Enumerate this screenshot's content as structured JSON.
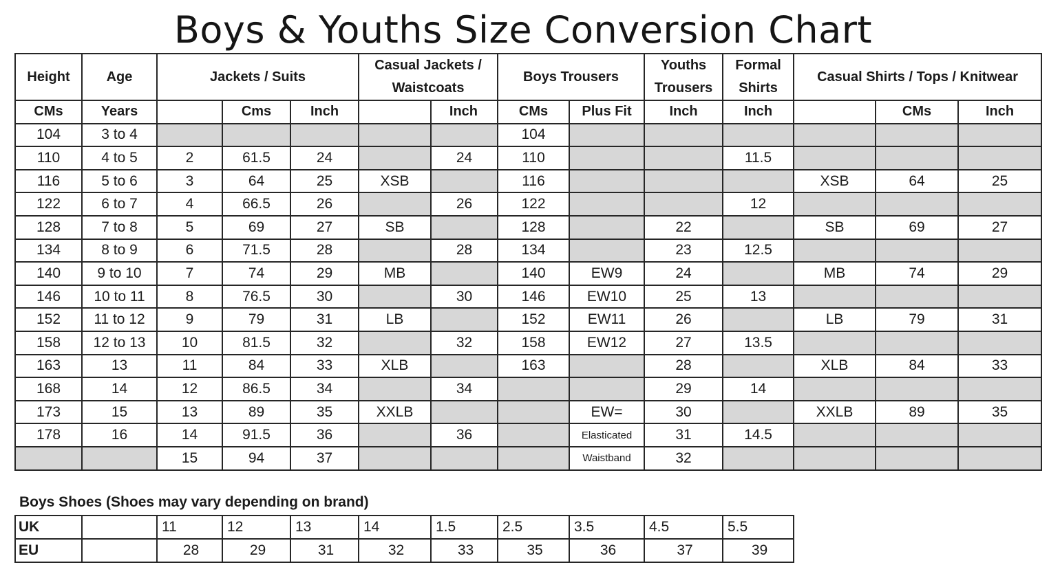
{
  "title": "Boys & Youths Size Conversion Chart",
  "headers": {
    "height": "Height",
    "age": "Age",
    "jackets": "Jackets / Suits",
    "casual_jackets_1": "Casual Jackets /",
    "casual_jackets_2": "Waistcoats",
    "boys_trousers": "Boys Trousers",
    "youths_trousers_1": "Youths",
    "youths_trousers_2": "Trousers",
    "formal_shirts_1": "Formal",
    "formal_shirts_2": "Shirts",
    "casual_shirts": "Casual Shirts / Tops / Knitwear"
  },
  "subheaders": [
    "CMs",
    "Years",
    "",
    "Cms",
    "Inch",
    "",
    "Inch",
    "CMs",
    "Plus Fit",
    "Inch",
    "Inch",
    "",
    "CMs",
    "Inch"
  ],
  "rows": [
    [
      "104",
      "3 to 4",
      "",
      "",
      "",
      "",
      "",
      "104",
      "",
      "",
      "",
      "",
      "",
      ""
    ],
    [
      "110",
      "4 to 5",
      "2",
      "61.5",
      "24",
      "",
      "24",
      "110",
      "",
      "",
      "11.5",
      "",
      "",
      ""
    ],
    [
      "116",
      "5 to 6",
      "3",
      "64",
      "25",
      "XSB",
      "",
      "116",
      "",
      "",
      "",
      "XSB",
      "64",
      "25"
    ],
    [
      "122",
      "6 to 7",
      "4",
      "66.5",
      "26",
      "",
      "26",
      "122",
      "",
      "",
      "12",
      "",
      "",
      ""
    ],
    [
      "128",
      "7 to 8",
      "5",
      "69",
      "27",
      "SB",
      "",
      "128",
      "",
      "22",
      "",
      "SB",
      "69",
      "27"
    ],
    [
      "134",
      "8 to 9",
      "6",
      "71.5",
      "28",
      "",
      "28",
      "134",
      "",
      "23",
      "12.5",
      "",
      "",
      ""
    ],
    [
      "140",
      "9 to 10",
      "7",
      "74",
      "29",
      "MB",
      "",
      "140",
      "EW9",
      "24",
      "",
      "MB",
      "74",
      "29"
    ],
    [
      "146",
      "10 to 11",
      "8",
      "76.5",
      "30",
      "",
      "30",
      "146",
      "EW10",
      "25",
      "13",
      "",
      "",
      ""
    ],
    [
      "152",
      "11 to 12",
      "9",
      "79",
      "31",
      "LB",
      "",
      "152",
      "EW11",
      "26",
      "",
      "LB",
      "79",
      "31"
    ],
    [
      "158",
      "12 to 13",
      "10",
      "81.5",
      "32",
      "",
      "32",
      "158",
      "EW12",
      "27",
      "13.5",
      "",
      "",
      ""
    ],
    [
      "163",
      "13",
      "11",
      "84",
      "33",
      "XLB",
      "",
      "163",
      "",
      "28",
      "",
      "XLB",
      "84",
      "33"
    ],
    [
      "168",
      "14",
      "12",
      "86.5",
      "34",
      "",
      "34",
      "",
      "",
      "29",
      "14",
      "",
      "",
      ""
    ],
    [
      "173",
      "15",
      "13",
      "89",
      "35",
      "XXLB",
      "",
      "",
      "EW=",
      "30",
      "",
      "XXLB",
      "89",
      "35"
    ],
    [
      "178",
      "16",
      "14",
      "91.5",
      "36",
      "",
      "36",
      "",
      "Elasticated",
      "31",
      "14.5",
      "",
      "",
      ""
    ],
    [
      "",
      "",
      "15",
      "94",
      "37",
      "",
      "",
      "",
      "Waistband",
      "32",
      "",
      "",
      "",
      ""
    ]
  ],
  "shoes": {
    "caption": "Boys Shoes  (Shoes may vary depending on brand)",
    "uk_label": "UK",
    "eu_label": "EU",
    "uk": [
      "",
      "11",
      "12",
      "13",
      "14",
      "1.5",
      "2.5",
      "3.5",
      "4.5",
      "5.5"
    ],
    "eu": [
      "",
      "28",
      "29",
      "31",
      "32",
      "33",
      "35",
      "36",
      "37",
      "39"
    ]
  },
  "colors": {
    "shaded_cell": "#d7d7d7",
    "border": "#262626"
  }
}
